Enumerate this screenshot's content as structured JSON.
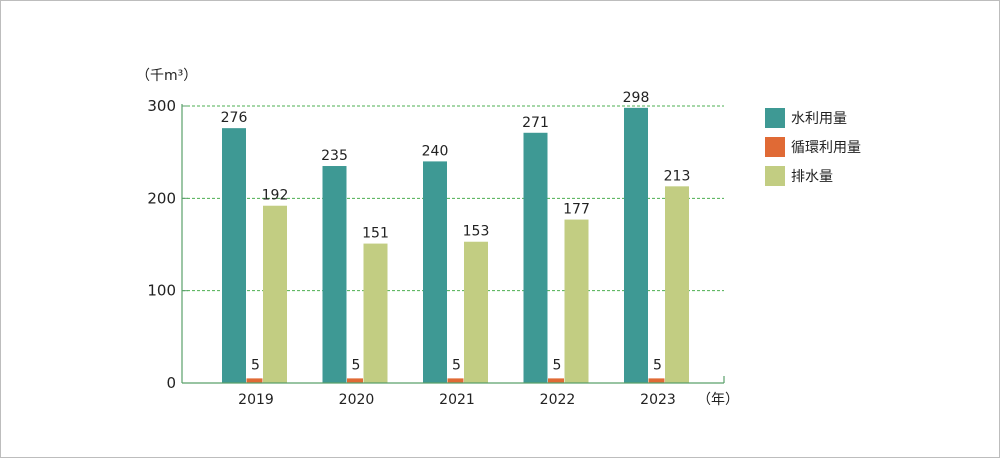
{
  "chart_data": {
    "type": "bar",
    "categories": [
      "2019",
      "2020",
      "2021",
      "2022",
      "2023"
    ],
    "series": [
      {
        "name": "水利用量",
        "values": [
          276,
          235,
          240,
          271,
          298
        ],
        "color": "#3e9994"
      },
      {
        "name": "循環利用量",
        "values": [
          5,
          5,
          5,
          5,
          5
        ],
        "color": "#e06a35"
      },
      {
        "name": "排水量",
        "values": [
          192,
          151,
          153,
          177,
          213
        ],
        "color": "#c2cd82"
      }
    ],
    "ylabel": "（千m³）",
    "xlabel": "（年）",
    "ylim": [
      0,
      300
    ],
    "yticks": [
      0,
      100,
      200,
      300
    ],
    "grid": true,
    "grid_color": "#4caf50",
    "axis_color": "#5aa06a",
    "legend_position": "right"
  }
}
